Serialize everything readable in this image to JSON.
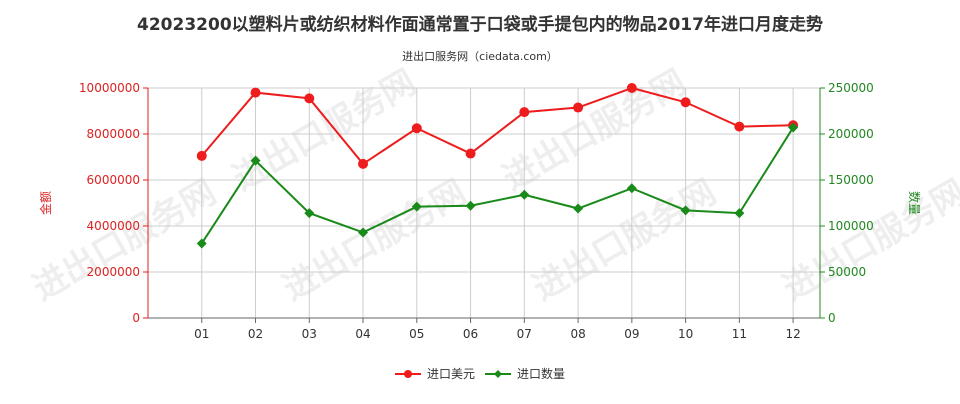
{
  "chart_data": {
    "type": "line",
    "title": "42023200以塑料片或纺织材料作面通常置于口袋或手提包内的物品2017年进口月度走势",
    "subtitle": "进出口服务网（ciedata.com）",
    "watermark": "进出口服务网",
    "categories": [
      "01",
      "02",
      "03",
      "04",
      "05",
      "06",
      "07",
      "08",
      "09",
      "10",
      "11",
      "12"
    ],
    "y_left": {
      "label": "金额",
      "color": "#dd2222",
      "range": [
        0,
        10000000
      ],
      "ticks": [
        "0",
        "2000000",
        "4000000",
        "6000000",
        "8000000",
        "10000000"
      ],
      "tick_values": [
        0,
        2000000,
        4000000,
        6000000,
        8000000,
        10000000
      ]
    },
    "y_right": {
      "label": "数量",
      "color": "#228822",
      "range": [
        0,
        250000
      ],
      "ticks": [
        "0",
        "50000",
        "100000",
        "150000",
        "200000",
        "250000"
      ],
      "tick_values": [
        0,
        50000,
        100000,
        150000,
        200000,
        250000
      ]
    },
    "series": [
      {
        "name": "进口美元",
        "axis": "left",
        "color": "#ee1c1c",
        "marker": "circle",
        "values": [
          7050000,
          9800000,
          9550000,
          6700000,
          8250000,
          7150000,
          8950000,
          9150000,
          10000000,
          9380000,
          8320000,
          8380000
        ]
      },
      {
        "name": "进口数量",
        "axis": "right",
        "color": "#1a8a1a",
        "marker": "diamond",
        "values": [
          81000,
          171000,
          114000,
          93000,
          121000,
          122000,
          134000,
          119000,
          141000,
          117000,
          114000,
          207000
        ]
      }
    ],
    "grid": true,
    "legend_position": "bottom-center"
  }
}
